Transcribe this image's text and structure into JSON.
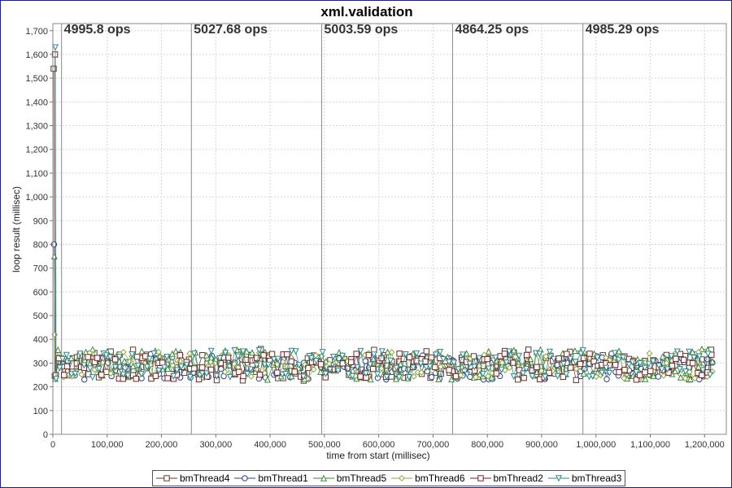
{
  "chart_data": {
    "type": "scatter",
    "title": "xml.validation",
    "xlabel": "time from start (millisec)",
    "ylabel": "loop result (millisec)",
    "xlim": [
      0,
      1240000
    ],
    "ylim": [
      0,
      1730
    ],
    "x_ticks": [
      0,
      100000,
      200000,
      300000,
      400000,
      500000,
      600000,
      700000,
      800000,
      900000,
      1000000,
      1100000,
      1200000
    ],
    "x_tick_labels": [
      "0",
      "100,000",
      "200,000",
      "300,000",
      "400,000",
      "500,000",
      "600,000",
      "700,000",
      "800,000",
      "900,000",
      "1,000,000",
      "1,100,000",
      "1,200,000"
    ],
    "y_ticks": [
      0,
      100,
      200,
      300,
      400,
      500,
      600,
      700,
      800,
      900,
      1000,
      1100,
      1200,
      1300,
      1400,
      1500,
      1600,
      1700
    ],
    "y_tick_labels": [
      "0",
      "100",
      "200",
      "300",
      "400",
      "500",
      "600",
      "700",
      "800",
      "900",
      "1,000",
      "1,100",
      "1,200",
      "1,300",
      "1,400",
      "1,500",
      "1,600",
      "1,700"
    ],
    "grid": true,
    "legend_position": "bottom",
    "phases": [
      {
        "x": 16000,
        "label": "4995.8 ops"
      },
      {
        "x": 255000,
        "label": "5027.68 ops"
      },
      {
        "x": 495000,
        "label": "5003.59 ops"
      },
      {
        "x": 736000,
        "label": "4864.25 ops"
      },
      {
        "x": 976000,
        "label": "4985.29 ops"
      }
    ],
    "series": [
      {
        "name": "bmThread4",
        "marker": "square",
        "color": "#5a3a2a",
        "fill": "#ffffff",
        "band": [
          225,
          360
        ],
        "peak": 1540
      },
      {
        "name": "bmThread1",
        "marker": "circle",
        "color": "#2a3f8f",
        "fill": "#ffffff",
        "band": [
          230,
          340
        ],
        "peak": 800
      },
      {
        "name": "bmThread5",
        "marker": "triangle-up",
        "color": "#3a8a3a",
        "fill": "#ffffff",
        "band": [
          230,
          360
        ],
        "peak": 750
      },
      {
        "name": "bmThread6",
        "marker": "diamond",
        "color": "#8aa83a",
        "fill": "#ffffff",
        "band": [
          235,
          350
        ],
        "peak": 420
      },
      {
        "name": "bmThread2",
        "marker": "square",
        "color": "#7a1f1f",
        "fill": "#ffffff",
        "band": [
          230,
          340
        ],
        "peak": 1600
      },
      {
        "name": "bmThread3",
        "marker": "triangle-down",
        "color": "#2a8a8a",
        "fill": "#ffffff",
        "band": [
          240,
          355
        ],
        "peak": 1630
      }
    ]
  }
}
